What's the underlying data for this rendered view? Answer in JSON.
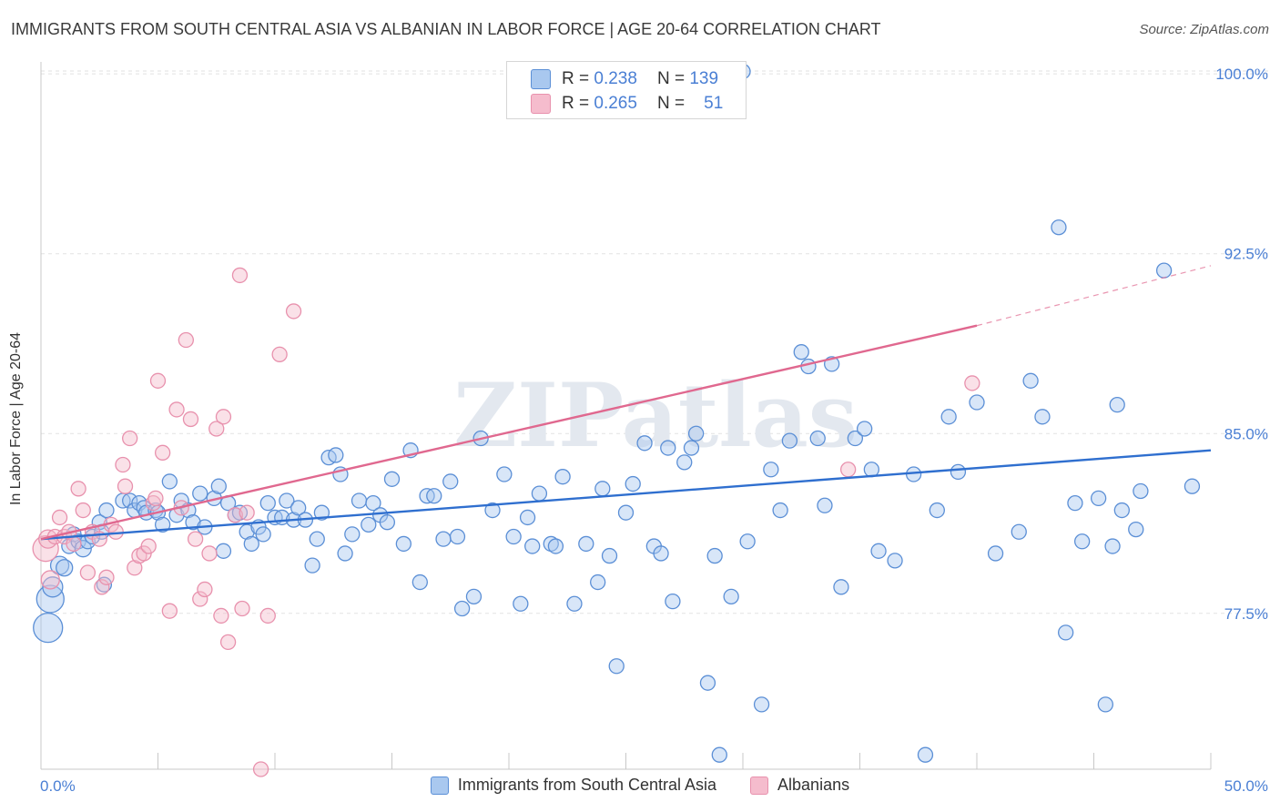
{
  "title": "IMMIGRANTS FROM SOUTH CENTRAL ASIA VS ALBANIAN IN LABOR FORCE | AGE 20-64 CORRELATION CHART",
  "source": "Source: ZipAtlas.com",
  "watermark": "ZIPatlas",
  "colors": {
    "blue_fill": "#a9c8ef",
    "blue_stroke": "#5b8fd6",
    "blue_line": "#2f6fcf",
    "pink_fill": "#f5bccd",
    "pink_stroke": "#e891ad",
    "pink_line": "#e0688f",
    "axis_label": "#4a7fd4"
  },
  "stats": [
    {
      "r_label": "R =",
      "r_value": "0.238",
      "n_label": "N =",
      "n_value": "139"
    },
    {
      "r_label": "R =",
      "r_value": "0.265",
      "n_label": "N =",
      "n_value": "51"
    }
  ],
  "chart_data": {
    "type": "scatter",
    "title": "IMMIGRANTS FROM SOUTH CENTRAL ASIA VS ALBANIAN IN LABOR FORCE | AGE 20-64 CORRELATION CHART",
    "xlabel": "",
    "ylabel": "In Labor Force | Age 20-64",
    "xlim": [
      0,
      50
    ],
    "ylim": [
      71.0,
      100.5
    ],
    "x_tick_labels": [
      "0.0%",
      "50.0%"
    ],
    "y_ticks": [
      77.5,
      85.0,
      92.5,
      100.0
    ],
    "y_tick_labels": [
      "77.5%",
      "85.0%",
      "92.5%",
      "100.0%"
    ],
    "grid": true,
    "legend_position": "bottom",
    "series": [
      {
        "name": "Immigrants from South Central Asia",
        "trend": {
          "x": [
            0,
            50
          ],
          "y": [
            80.6,
            84.3
          ]
        },
        "points": [
          [
            0.3,
            76.9,
            16
          ],
          [
            0.4,
            78.1,
            15
          ],
          [
            0.5,
            78.6,
            11
          ],
          [
            0.8,
            79.5,
            10
          ],
          [
            1.0,
            79.4,
            9
          ],
          [
            1.2,
            80.3,
            8
          ],
          [
            1.4,
            80.8,
            8
          ],
          [
            1.6,
            80.5,
            8
          ],
          [
            1.8,
            80.2,
            9
          ],
          [
            2.0,
            80.5,
            8
          ],
          [
            2.2,
            80.7,
            8
          ],
          [
            2.5,
            81.3,
            8
          ],
          [
            2.6,
            80.9,
            8
          ],
          [
            2.7,
            78.7,
            8
          ],
          [
            2.8,
            81.8,
            8
          ],
          [
            3.5,
            82.2,
            8
          ],
          [
            3.8,
            82.2,
            8
          ],
          [
            4.0,
            81.8,
            8
          ],
          [
            4.2,
            82.1,
            8
          ],
          [
            4.4,
            81.9,
            8
          ],
          [
            4.5,
            81.7,
            8
          ],
          [
            4.9,
            81.8,
            8
          ],
          [
            5.0,
            81.7,
            8
          ],
          [
            5.2,
            81.2,
            8
          ],
          [
            5.5,
            83.0,
            8
          ],
          [
            5.8,
            81.6,
            8
          ],
          [
            6.0,
            82.2,
            8
          ],
          [
            6.3,
            81.8,
            8
          ],
          [
            6.5,
            81.3,
            8
          ],
          [
            6.8,
            82.5,
            8
          ],
          [
            7.0,
            81.1,
            8
          ],
          [
            7.4,
            82.3,
            8
          ],
          [
            7.6,
            82.8,
            8
          ],
          [
            7.8,
            80.1,
            8
          ],
          [
            8.0,
            82.1,
            8
          ],
          [
            8.3,
            81.6,
            8
          ],
          [
            8.5,
            81.7,
            8
          ],
          [
            8.8,
            80.9,
            8
          ],
          [
            9.0,
            80.4,
            8
          ],
          [
            9.3,
            81.1,
            8
          ],
          [
            9.5,
            80.8,
            8
          ],
          [
            9.7,
            82.1,
            8
          ],
          [
            10.0,
            81.5,
            8
          ],
          [
            10.3,
            81.5,
            8
          ],
          [
            10.5,
            82.2,
            8
          ],
          [
            10.8,
            81.4,
            8
          ],
          [
            11.0,
            81.9,
            8
          ],
          [
            11.3,
            81.4,
            8
          ],
          [
            11.6,
            79.5,
            8
          ],
          [
            11.8,
            80.6,
            8
          ],
          [
            12.0,
            81.7,
            8
          ],
          [
            12.3,
            84.0,
            8
          ],
          [
            12.6,
            84.1,
            8
          ],
          [
            12.8,
            83.3,
            8
          ],
          [
            13.0,
            80.0,
            8
          ],
          [
            13.3,
            80.8,
            8
          ],
          [
            13.6,
            82.2,
            8
          ],
          [
            14.0,
            81.2,
            8
          ],
          [
            14.2,
            82.1,
            8
          ],
          [
            14.5,
            81.6,
            8
          ],
          [
            14.8,
            81.3,
            8
          ],
          [
            15.0,
            83.1,
            8
          ],
          [
            15.5,
            80.4,
            8
          ],
          [
            15.8,
            84.3,
            8
          ],
          [
            16.2,
            78.8,
            8
          ],
          [
            16.5,
            82.4,
            8
          ],
          [
            16.8,
            82.4,
            8
          ],
          [
            17.2,
            80.6,
            8
          ],
          [
            17.5,
            83.0,
            8
          ],
          [
            17.8,
            80.7,
            8
          ],
          [
            18.0,
            77.7,
            8
          ],
          [
            18.5,
            78.2,
            8
          ],
          [
            18.8,
            84.8,
            8
          ],
          [
            19.3,
            81.8,
            8
          ],
          [
            19.8,
            83.3,
            8
          ],
          [
            20.2,
            80.7,
            8
          ],
          [
            20.5,
            77.9,
            8
          ],
          [
            20.8,
            81.5,
            8
          ],
          [
            21.0,
            80.3,
            8
          ],
          [
            21.3,
            82.5,
            8
          ],
          [
            21.8,
            80.4,
            8
          ],
          [
            22.0,
            80.3,
            8
          ],
          [
            22.3,
            83.2,
            8
          ],
          [
            22.8,
            77.9,
            8
          ],
          [
            23.3,
            80.4,
            8
          ],
          [
            23.8,
            78.8,
            8
          ],
          [
            24.0,
            82.7,
            8
          ],
          [
            24.3,
            79.9,
            8
          ],
          [
            24.6,
            75.3,
            8
          ],
          [
            25.0,
            81.7,
            8
          ],
          [
            25.3,
            82.9,
            8
          ],
          [
            25.8,
            84.6,
            8
          ],
          [
            26.2,
            80.3,
            8
          ],
          [
            26.5,
            80.0,
            8
          ],
          [
            26.8,
            84.4,
            8
          ],
          [
            27.0,
            78.0,
            8
          ],
          [
            27.5,
            83.8,
            8
          ],
          [
            27.8,
            84.4,
            8
          ],
          [
            28.0,
            85.0,
            8
          ],
          [
            28.5,
            74.6,
            8
          ],
          [
            28.8,
            79.9,
            8
          ],
          [
            29.0,
            71.6,
            8
          ],
          [
            29.5,
            78.2,
            8
          ],
          [
            30.2,
            80.5,
            8
          ],
          [
            30.8,
            73.7,
            8
          ],
          [
            31.2,
            83.5,
            8
          ],
          [
            31.6,
            81.8,
            8
          ],
          [
            32.0,
            84.7,
            8
          ],
          [
            32.5,
            88.4,
            8
          ],
          [
            32.8,
            87.8,
            8
          ],
          [
            33.2,
            84.8,
            8
          ],
          [
            33.5,
            82.0,
            8
          ],
          [
            33.8,
            87.9,
            8
          ],
          [
            34.2,
            78.6,
            8
          ],
          [
            34.8,
            84.8,
            8
          ],
          [
            35.2,
            85.2,
            8
          ],
          [
            35.5,
            83.5,
            8
          ],
          [
            35.8,
            80.1,
            8
          ],
          [
            36.5,
            79.7,
            8
          ],
          [
            37.3,
            83.3,
            8
          ],
          [
            37.8,
            71.6,
            8
          ],
          [
            38.3,
            81.8,
            8
          ],
          [
            38.8,
            85.7,
            8
          ],
          [
            39.2,
            83.4,
            8
          ],
          [
            40.0,
            86.3,
            8
          ],
          [
            40.8,
            80.0,
            8
          ],
          [
            41.8,
            80.9,
            8
          ],
          [
            42.3,
            87.2,
            8
          ],
          [
            42.8,
            85.7,
            8
          ],
          [
            43.5,
            93.6,
            8
          ],
          [
            43.8,
            76.7,
            8
          ],
          [
            44.2,
            82.1,
            8
          ],
          [
            44.5,
            80.5,
            8
          ],
          [
            45.2,
            82.3,
            8
          ],
          [
            45.5,
            73.7,
            8
          ],
          [
            45.8,
            80.3,
            8
          ],
          [
            46.0,
            86.2,
            8
          ],
          [
            46.2,
            81.8,
            8
          ],
          [
            46.8,
            81.0,
            8
          ],
          [
            47.0,
            82.6,
            8
          ],
          [
            48.0,
            91.8,
            8
          ],
          [
            49.2,
            82.8,
            8
          ],
          [
            30.0,
            100.1,
            8
          ]
        ]
      },
      {
        "name": "Albanians",
        "trend": {
          "x": [
            0,
            40
          ],
          "y": [
            80.6,
            89.5
          ],
          "dashed_to": {
            "x": 50,
            "y": 92.0
          }
        },
        "points": [
          [
            0.2,
            80.2,
            14
          ],
          [
            0.3,
            80.6,
            10
          ],
          [
            0.4,
            78.9,
            10
          ],
          [
            0.6,
            80.7,
            8
          ],
          [
            0.8,
            81.5,
            8
          ],
          [
            1.0,
            80.7,
            8
          ],
          [
            1.2,
            80.9,
            8
          ],
          [
            1.4,
            80.4,
            8
          ],
          [
            1.6,
            82.7,
            8
          ],
          [
            1.8,
            81.8,
            8
          ],
          [
            2.0,
            79.2,
            8
          ],
          [
            2.2,
            80.9,
            8
          ],
          [
            2.5,
            80.6,
            8
          ],
          [
            2.6,
            78.6,
            8
          ],
          [
            2.8,
            79.0,
            8
          ],
          [
            3.0,
            81.2,
            8
          ],
          [
            3.2,
            80.9,
            8
          ],
          [
            3.5,
            83.7,
            8
          ],
          [
            3.6,
            82.8,
            8
          ],
          [
            3.8,
            84.8,
            8
          ],
          [
            4.0,
            79.4,
            8
          ],
          [
            4.2,
            79.9,
            8
          ],
          [
            4.4,
            80.0,
            8
          ],
          [
            4.6,
            80.3,
            8
          ],
          [
            4.8,
            82.1,
            8
          ],
          [
            4.9,
            82.3,
            8
          ],
          [
            5.0,
            87.2,
            8
          ],
          [
            5.2,
            84.2,
            8
          ],
          [
            5.5,
            77.6,
            8
          ],
          [
            5.8,
            86.0,
            8
          ],
          [
            6.0,
            81.9,
            8
          ],
          [
            6.2,
            88.9,
            8
          ],
          [
            6.4,
            85.6,
            8
          ],
          [
            6.6,
            80.6,
            8
          ],
          [
            6.8,
            78.1,
            8
          ],
          [
            7.0,
            78.5,
            8
          ],
          [
            7.2,
            80.0,
            8
          ],
          [
            7.5,
            85.2,
            8
          ],
          [
            7.7,
            77.4,
            8
          ],
          [
            7.8,
            85.7,
            8
          ],
          [
            8.0,
            76.3,
            8
          ],
          [
            8.3,
            81.6,
            8
          ],
          [
            8.5,
            91.6,
            8
          ],
          [
            8.6,
            77.7,
            8
          ],
          [
            8.8,
            81.7,
            8
          ],
          [
            9.4,
            71.0,
            8
          ],
          [
            9.7,
            77.4,
            8
          ],
          [
            10.2,
            88.3,
            8
          ],
          [
            10.8,
            90.1,
            8
          ],
          [
            34.5,
            83.5,
            8
          ],
          [
            39.8,
            87.1,
            8
          ]
        ]
      }
    ]
  },
  "legend": [
    {
      "name": "Immigrants from South Central Asia"
    },
    {
      "name": "Albanians"
    }
  ]
}
